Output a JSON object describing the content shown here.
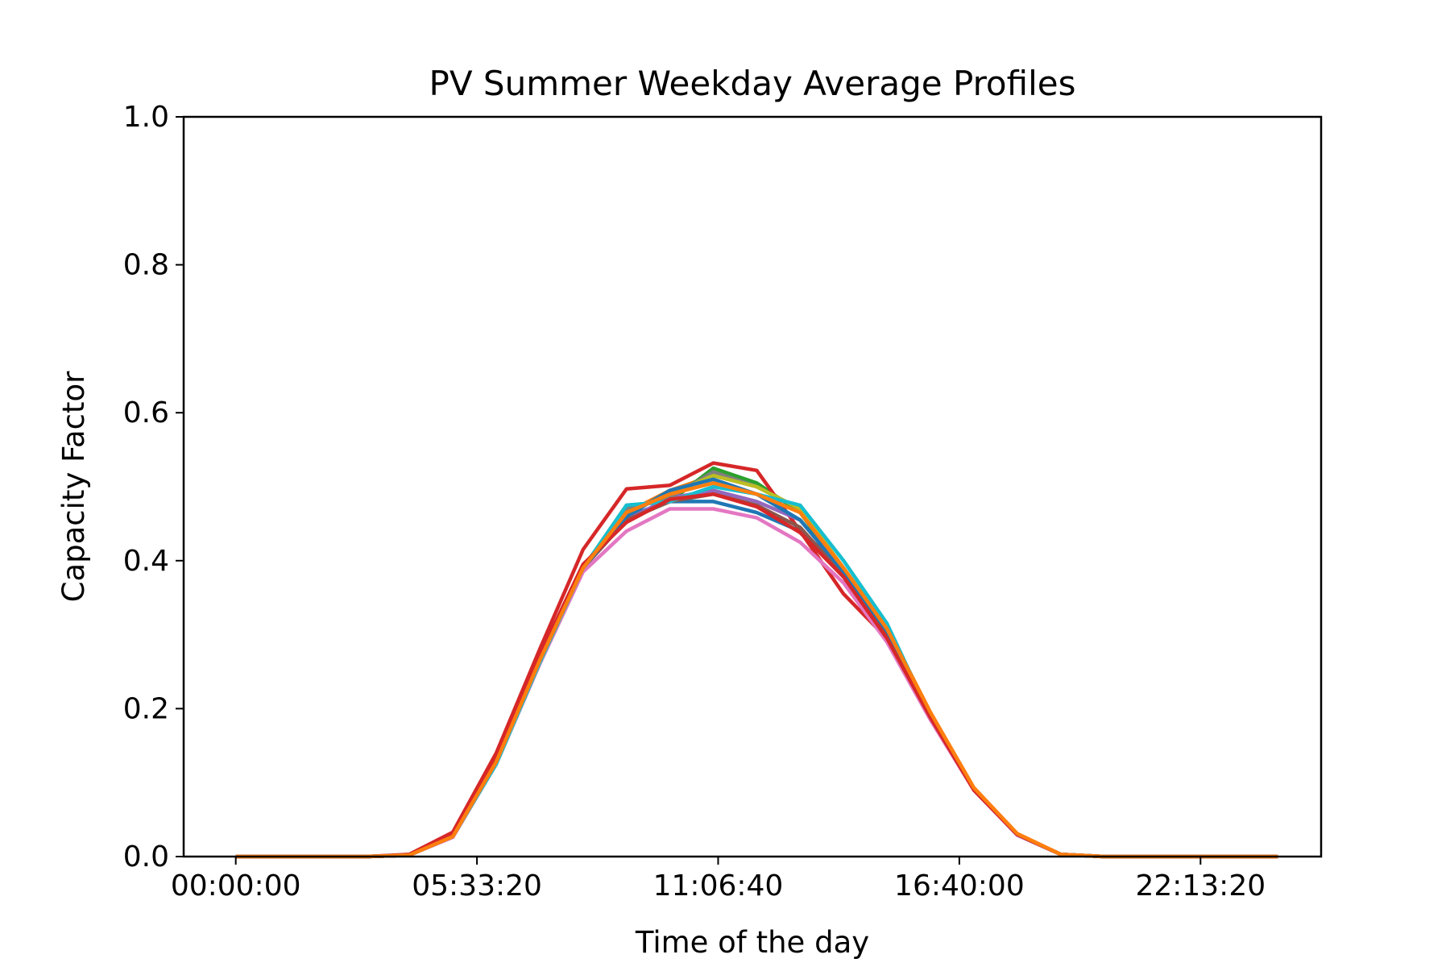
{
  "chart_data": {
    "type": "line",
    "title": "PV Summer Weekday Average Profiles",
    "xlabel": "Time of the day",
    "ylabel": "Capacity Factor",
    "x_unit": "hour of day",
    "xlim": [
      -1.2,
      25
    ],
    "ylim": [
      0,
      1.0
    ],
    "xticks": [
      {
        "label": "00:00:00",
        "value": 0
      },
      {
        "label": "05:33:20",
        "value": 5.5556
      },
      {
        "label": "11:06:40",
        "value": 11.1111
      },
      {
        "label": "16:40:00",
        "value": 16.6667
      },
      {
        "label": "22:13:20",
        "value": 22.2222
      }
    ],
    "yticks": [
      "0.0",
      "0.2",
      "0.4",
      "0.6",
      "0.8",
      "1.0"
    ],
    "grid": false,
    "legend": "none",
    "x": [
      0,
      1,
      2,
      3,
      4,
      5,
      6,
      7,
      8,
      9,
      10,
      11,
      12,
      13,
      14,
      15,
      16,
      17,
      18,
      19,
      20,
      21,
      22,
      23,
      24
    ],
    "series": [
      {
        "color": "#1f77b4",
        "values": [
          0,
          0,
          0,
          0,
          0.002,
          0.028,
          0.13,
          0.27,
          0.39,
          0.46,
          0.48,
          0.48,
          0.465,
          0.44,
          0.39,
          0.3,
          0.19,
          0.092,
          0.03,
          0.003,
          0,
          0,
          0,
          0,
          0
        ]
      },
      {
        "color": "#ff7f0e",
        "values": [
          0,
          0,
          0,
          0,
          0.002,
          0.027,
          0.128,
          0.265,
          0.39,
          0.465,
          0.495,
          0.515,
          0.5,
          0.47,
          0.39,
          0.31,
          0.195,
          0.093,
          0.031,
          0.003,
          0,
          0,
          0,
          0,
          0
        ]
      },
      {
        "color": "#2ca02c",
        "values": [
          0,
          0,
          0,
          0,
          0.002,
          0.029,
          0.13,
          0.27,
          0.39,
          0.475,
          0.48,
          0.525,
          0.505,
          0.465,
          0.385,
          0.305,
          0.19,
          0.091,
          0.03,
          0.003,
          0,
          0,
          0,
          0,
          0
        ]
      },
      {
        "color": "#d62728",
        "values": [
          0,
          0,
          0,
          0,
          0.003,
          0.033,
          0.14,
          0.28,
          0.415,
          0.497,
          0.502,
          0.532,
          0.522,
          0.44,
          0.355,
          0.295,
          0.19,
          0.09,
          0.03,
          0.003,
          0,
          0,
          0,
          0,
          0
        ]
      },
      {
        "color": "#9467bd",
        "values": [
          0,
          0,
          0,
          0,
          0.002,
          0.028,
          0.128,
          0.265,
          0.39,
          0.455,
          0.485,
          0.495,
          0.48,
          0.455,
          0.385,
          0.3,
          0.19,
          0.091,
          0.03,
          0.003,
          0,
          0,
          0,
          0,
          0
        ]
      },
      {
        "color": "#8c564b",
        "values": [
          0,
          0,
          0,
          0,
          0.002,
          0.028,
          0.128,
          0.265,
          0.39,
          0.455,
          0.48,
          0.49,
          0.475,
          0.445,
          0.38,
          0.3,
          0.19,
          0.091,
          0.03,
          0.003,
          0,
          0,
          0,
          0,
          0
        ]
      },
      {
        "color": "#e377c2",
        "values": [
          0,
          0,
          0,
          0,
          0.002,
          0.026,
          0.125,
          0.26,
          0.385,
          0.44,
          0.47,
          0.47,
          0.458,
          0.425,
          0.37,
          0.29,
          0.185,
          0.09,
          0.029,
          0.003,
          0,
          0,
          0,
          0,
          0
        ]
      },
      {
        "color": "#7f7f7f",
        "values": [
          0,
          0,
          0,
          0,
          0.002,
          0.028,
          0.13,
          0.268,
          0.39,
          0.47,
          0.485,
          0.52,
          0.5,
          0.47,
          0.39,
          0.31,
          0.19,
          0.091,
          0.03,
          0.003,
          0,
          0,
          0,
          0,
          0
        ]
      },
      {
        "color": "#bcbd22",
        "values": [
          0,
          0,
          0,
          0,
          0.002,
          0.028,
          0.13,
          0.268,
          0.39,
          0.465,
          0.49,
          0.515,
          0.5,
          0.47,
          0.39,
          0.31,
          0.19,
          0.091,
          0.03,
          0.003,
          0,
          0,
          0,
          0,
          0
        ]
      },
      {
        "color": "#17becf",
        "values": [
          0,
          0,
          0,
          0,
          0.002,
          0.027,
          0.125,
          0.262,
          0.39,
          0.475,
          0.48,
          0.5,
          0.49,
          0.475,
          0.4,
          0.315,
          0.19,
          0.091,
          0.03,
          0.003,
          0,
          0,
          0,
          0,
          0
        ]
      },
      {
        "color": "#1f77b4",
        "values": [
          0,
          0,
          0,
          0,
          0.002,
          0.028,
          0.13,
          0.27,
          0.39,
          0.46,
          0.495,
          0.51,
          0.49,
          0.455,
          0.385,
          0.305,
          0.19,
          0.091,
          0.03,
          0.003,
          0,
          0,
          0,
          0,
          0
        ]
      },
      {
        "color": "#d62728",
        "values": [
          0,
          0,
          0,
          0,
          0.002,
          0.03,
          0.135,
          0.272,
          0.395,
          0.452,
          0.483,
          0.49,
          0.473,
          0.438,
          0.378,
          0.295,
          0.188,
          0.09,
          0.03,
          0.003,
          0,
          0,
          0,
          0,
          0
        ]
      },
      {
        "color": "#ff7f0e",
        "values": [
          0,
          0,
          0,
          0,
          0.002,
          0.027,
          0.128,
          0.265,
          0.39,
          0.465,
          0.49,
          0.505,
          0.49,
          0.465,
          0.39,
          0.308,
          0.195,
          0.093,
          0.031,
          0.003,
          0,
          0,
          0,
          0,
          0
        ]
      }
    ]
  }
}
